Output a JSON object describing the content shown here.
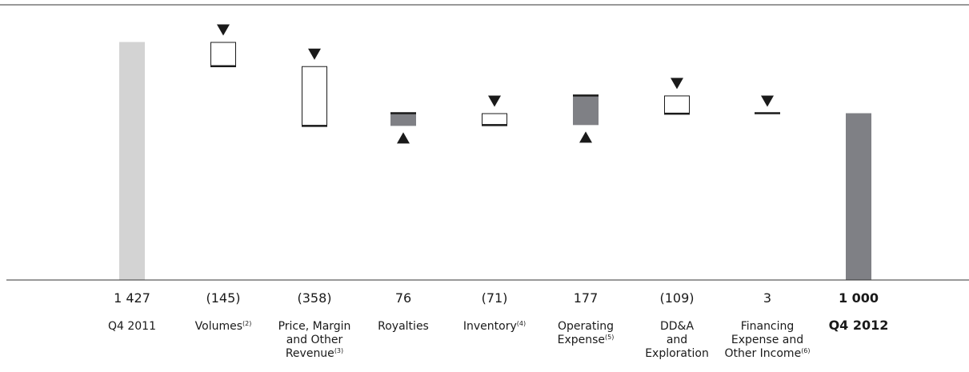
{
  "chart_data": {
    "type": "waterfall",
    "colors": {
      "start_bar": "#d3d3d3",
      "end_bar": "#7f8085",
      "increase_box": "#7f8085",
      "decrease_box": "#ffffff",
      "edge": "#1a1a1a"
    },
    "ylim": [
      0,
      1650
    ],
    "items": [
      {
        "label": [
          "Q4 2011"
        ],
        "sup": "",
        "value_label": "1 427",
        "value": 1427,
        "kind": "total",
        "bold": false
      },
      {
        "label": [
          "Volumes"
        ],
        "sup": "(2)",
        "value_label": "(145)",
        "value": -145,
        "kind": "delta",
        "bold": false
      },
      {
        "label": [
          "Price, Margin",
          "and Other",
          "Revenue"
        ],
        "sup": "(3)",
        "value_label": "(358)",
        "value": -358,
        "kind": "delta",
        "bold": false
      },
      {
        "label": [
          "Royalties"
        ],
        "sup": "",
        "value_label": "76",
        "value": 76,
        "kind": "delta",
        "bold": false
      },
      {
        "label": [
          "Inventory"
        ],
        "sup": "(4)",
        "value_label": "(71)",
        "value": -71,
        "kind": "delta",
        "bold": false
      },
      {
        "label": [
          "Operating",
          "Expense"
        ],
        "sup": "(5)",
        "value_label": "177",
        "value": 177,
        "kind": "delta",
        "bold": false
      },
      {
        "label": [
          "DD&A",
          "and",
          "Exploration"
        ],
        "sup": "",
        "value_label": "(109)",
        "value": -109,
        "kind": "delta",
        "bold": false
      },
      {
        "label": [
          "Financing",
          "Expense and",
          "Other Income"
        ],
        "sup": "(6)",
        "value_label": "3",
        "value": 3,
        "kind": "delta",
        "bold": false
      },
      {
        "label": [
          "Q4 2012"
        ],
        "sup": "",
        "value_label": "1 000",
        "value": 1000,
        "kind": "total",
        "bold": true
      }
    ]
  }
}
